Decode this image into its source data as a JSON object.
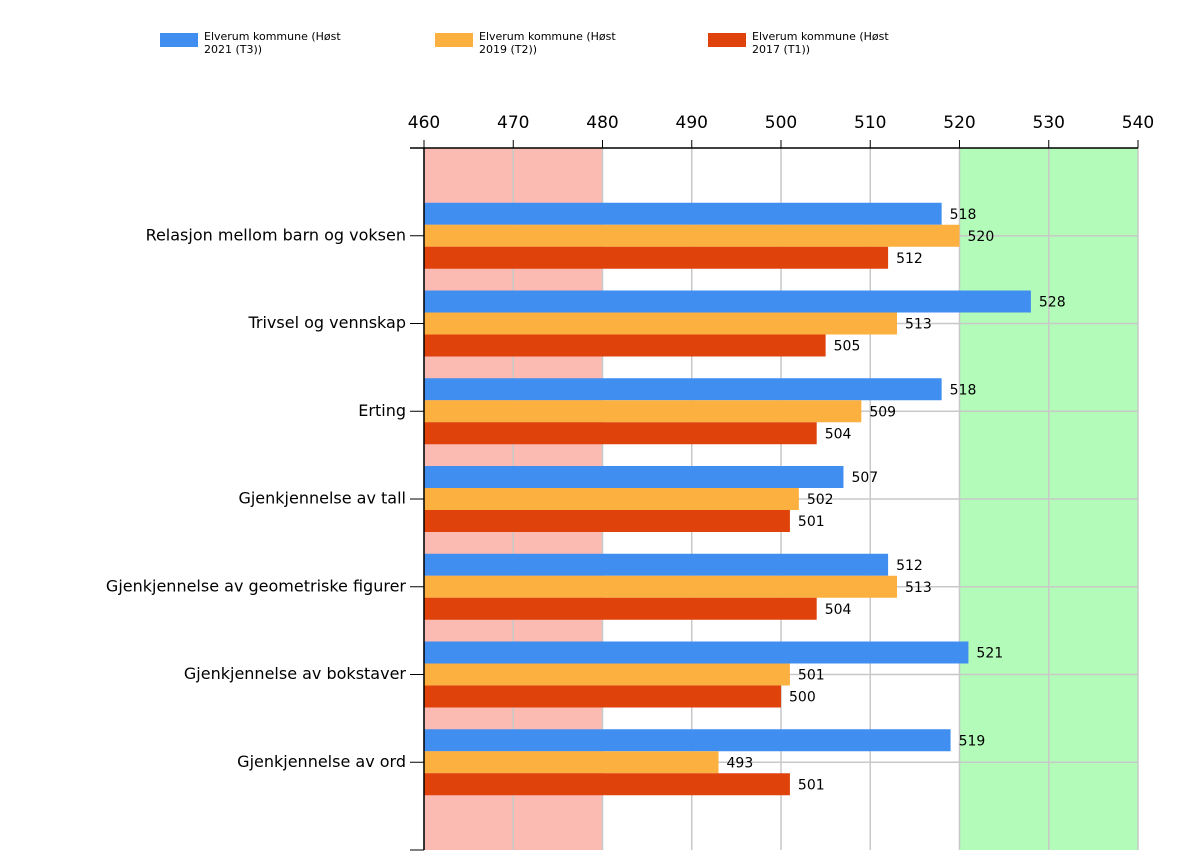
{
  "chart_data": {
    "type": "bar",
    "orientation": "horizontal",
    "categories": [
      "Relasjon mellom barn og voksen",
      "Trivsel og vennskap",
      "Erting",
      "Gjenkjennelse av tall",
      "Gjenkjennelse av geometriske figurer",
      "Gjenkjennelse av bokstaver",
      "Gjenkjennelse av ord"
    ],
    "series": [
      {
        "name": "Elverum kommune (Høst 2021 (T3))",
        "color": "#3f8ef0",
        "values": [
          518,
          528,
          518,
          507,
          512,
          521,
          519
        ]
      },
      {
        "name": "Elverum kommune (Høst 2019 (T2))",
        "color": "#fbb040",
        "values": [
          520,
          513,
          509,
          502,
          513,
          501,
          493
        ]
      },
      {
        "name": "Elverum kommune (Høst 2017 (T1))",
        "color": "#e0420c",
        "values": [
          512,
          505,
          504,
          501,
          504,
          500,
          501
        ]
      }
    ],
    "xlim": [
      460,
      540
    ],
    "xticks": [
      460,
      470,
      480,
      490,
      500,
      510,
      520,
      530,
      540
    ],
    "bands": [
      {
        "from": 460,
        "to": 480,
        "color": "#fbbab2"
      },
      {
        "from": 520,
        "to": 540,
        "color": "#b3fbb9"
      }
    ],
    "grid": true,
    "legend": "top"
  }
}
